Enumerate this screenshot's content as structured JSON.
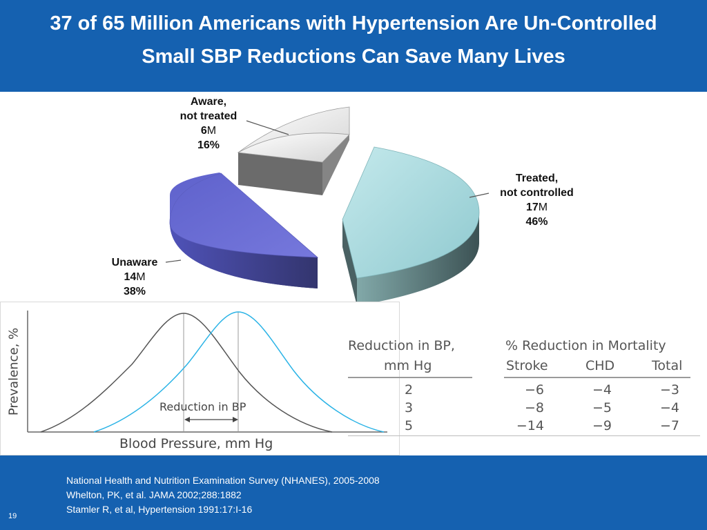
{
  "header": {
    "title_line1": "37 of 65 Million Americans with Hypertension Are Un-Controlled",
    "title_line2": "Small SBP Reductions Can Save Many Lives"
  },
  "pie": {
    "slices": [
      {
        "label_line1": "Aware,",
        "label_line2": "not treated",
        "millions": "6",
        "unit": "M",
        "percent": "16%",
        "value": 16,
        "color": "#e8e8e8"
      },
      {
        "label_line1": "Treated,",
        "label_line2": "not controlled",
        "millions": "17",
        "unit": "M",
        "percent": "46%",
        "value": 46,
        "color": "#a9dadf"
      },
      {
        "label_line1": "Unaware",
        "label_line2": "",
        "millions": "14",
        "unit": "M",
        "percent": "38%",
        "value": 38,
        "color": "#6466cf"
      }
    ]
  },
  "curve_chart": {
    "y_label": "Prevalence, %",
    "x_label": "Blood Pressure, mm Hg",
    "annotation": "Reduction in BP"
  },
  "reduction_table": {
    "col1_header_line1": "Reduction in BP,",
    "col1_header_line2": "mm Hg",
    "group_header": "% Reduction in Mortality",
    "col_headers": [
      "Stroke",
      "CHD",
      "Total"
    ],
    "rows": [
      {
        "bp": "2",
        "stroke": "−6",
        "chd": "−4",
        "total": "−3"
      },
      {
        "bp": "3",
        "stroke": "−8",
        "chd": "−5",
        "total": "−4"
      },
      {
        "bp": "5",
        "stroke": "−14",
        "chd": "−9",
        "total": "−7"
      }
    ]
  },
  "footer": {
    "references": [
      "National Health and Nutrition Examination Survey (NHANES), 2005-2008",
      "Whelton, PK, et al. JAMA 2002;288:1882",
      "Stamler R, et al, Hypertension 1991:17:I-16"
    ],
    "slide_number": "19"
  }
}
